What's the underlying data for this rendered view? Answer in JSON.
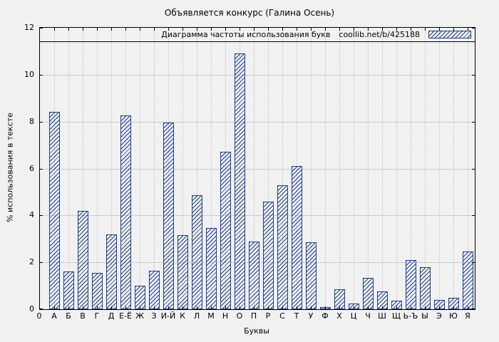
{
  "title": "Объявляется конкурс (Галина Осень)",
  "legend": {
    "label": "Диаграмма частоты использования букв",
    "source": "coollib.net/b/425188"
  },
  "axes": {
    "y_label": "% использования в тексте",
    "x_label": "Буквы",
    "y_ticks": [
      0,
      2,
      4,
      6,
      8,
      10,
      12
    ],
    "origin_label": "0"
  },
  "colors": {
    "bar": "#1d3f8f",
    "background": "#f1f1f1",
    "grid": "#a6a6a6",
    "axis": "#000000"
  },
  "chart_data": {
    "type": "bar",
    "title": "Объявляется конкурс (Галина Осень)",
    "legend": "Диаграмма частоты использования букв coollib.net/b/425188",
    "legend_position": "top-right",
    "xlabel": "Буквы",
    "ylabel": "% использования в тексте",
    "ylim": [
      0,
      12
    ],
    "grid": true,
    "hatch_pattern": "diagonal",
    "categories": [
      "А",
      "Б",
      "В",
      "Г",
      "Д",
      "Е-Ё",
      "Ж",
      "З",
      "И-Й",
      "К",
      "Л",
      "М",
      "Н",
      "О",
      "П",
      "Р",
      "С",
      "Т",
      "У",
      "Ф",
      "Х",
      "Ц",
      "Ч",
      "Ш",
      "Щ",
      "Ь-Ъ",
      "Ы",
      "Э",
      "Ю",
      "Я"
    ],
    "values": [
      8.4,
      1.6,
      4.2,
      1.55,
      3.2,
      8.25,
      1.0,
      1.65,
      7.95,
      3.15,
      4.85,
      3.45,
      6.7,
      10.9,
      2.9,
      4.6,
      5.3,
      6.1,
      2.85,
      0.1,
      0.85,
      0.25,
      1.35,
      0.75,
      0.35,
      2.1,
      1.8,
      0.4,
      0.5,
      2.45
    ]
  }
}
